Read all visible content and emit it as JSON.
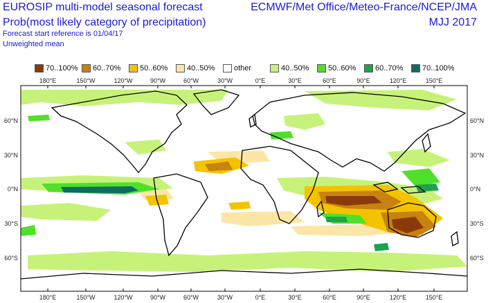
{
  "header": {
    "title": "EUROSIP multi-model seasonal forecast",
    "subtitle": "Prob(most likely category of precipitation)",
    "reference": "Forecast start reference is 01/04/17",
    "weighting": "Unweighted mean",
    "centres": "ECMWF/Met Office/Meteo-France/NCEP/JMA",
    "season": "MJJ 2017"
  },
  "legend": [
    {
      "label": "70..100%",
      "color": "#8a3a0a"
    },
    {
      "label": "60..70%",
      "color": "#c8820e"
    },
    {
      "label": "50..60%",
      "color": "#f3c300"
    },
    {
      "label": "40..50%",
      "color": "#fbe6a8"
    },
    {
      "label": "other",
      "color": "#ffffff"
    },
    {
      "label": "40..50%",
      "color": "#c7f27a"
    },
    {
      "label": "50..60%",
      "color": "#4fe02a"
    },
    {
      "label": "60..70%",
      "color": "#1ea34a"
    },
    {
      "label": "70..100%",
      "color": "#0f6b63"
    }
  ],
  "axes": {
    "lon_labels": [
      "180°E",
      "150°W",
      "120°W",
      "90°W",
      "60°W",
      "30°W",
      "0°E",
      "30°E",
      "60°E",
      "90°E",
      "120°E",
      "150°E"
    ],
    "lat_labels": [
      "60°N",
      "30°N",
      "0°N",
      "30°S",
      "60°S"
    ]
  }
}
